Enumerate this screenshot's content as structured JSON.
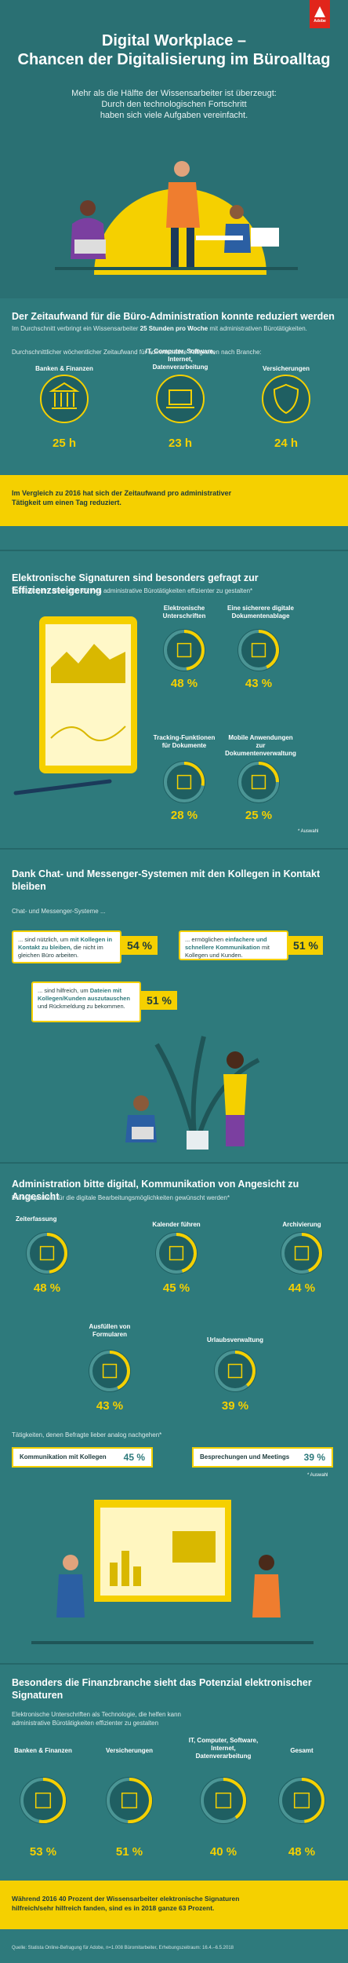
{
  "header": {
    "logo": "Adobe",
    "title_lines": [
      "Digital Workplace –",
      "Chancen der Digitalisierung im Büroalltag"
    ],
    "intro_lines": [
      "Mehr als die Hälfte der Wissensarbeiter ist überzeugt:",
      "Durch den technologischen Fortschritt",
      "haben sich viele Aufgaben vereinfacht."
    ]
  },
  "section1": {
    "title": "Der Zeitaufwand für die Büro-Administration konnte reduziert werden",
    "intro": [
      "Im Durchschnitt verbringt ein Wissensarbeiter ",
      "25 Stunden pro Woche",
      " mit administrativen Bürotätigkeiten."
    ],
    "subtitle": "Durchschnittlicher wöchentlicher Zeitaufwand für administrative Tätigkeiten nach Branche:",
    "items": [
      {
        "label": "Banken & Finanzen",
        "value": "25 h"
      },
      {
        "label": "IT, Computer, Software, Internet, Datenverarbeitung",
        "value": "23 h"
      },
      {
        "label": "Versicherungen",
        "value": "24 h"
      }
    ],
    "highlight": "Im Vergleich zu 2016 hat sich der Zeitaufwand pro administrativer Tätigkeit um einen Tag reduziert."
  },
  "section2": {
    "title": "Elektronische Signaturen sind besonders gefragt zur Effizienzsteigerung",
    "subtitle": "Technologien, die helfen können administrative Bürotätigkeiten effizienter zu gestalten*",
    "items": [
      {
        "label": "Elektronische Unterschriften",
        "value": 48,
        "value_label": "48 %"
      },
      {
        "label": "Eine sicherere digitale Dokumentenablage",
        "value": 43,
        "value_label": "43 %"
      },
      {
        "label": "Tracking-Funktionen für Dokumente",
        "value": 28,
        "value_label": "28 %"
      },
      {
        "label": "Mobile Anwendungen zur Dokumentenverwaltung",
        "value": 25,
        "value_label": "25 %"
      }
    ],
    "note": "* Auswahl"
  },
  "section3": {
    "title": "Dank Chat- und Messenger-Systemen mit den Kollegen in Kontakt bleiben",
    "subtitle": "Chat- und Messenger-Systeme ...",
    "bubbles": [
      {
        "parts": [
          "... sind nützlich, um ",
          "mit Kollegen in Kontakt zu bleiben,",
          " die nicht im gleichen Büro arbeiten."
        ],
        "value": "54 %"
      },
      {
        "parts": [
          "... ermöglichen ",
          "einfachere und schnellere Kommunikation",
          " mit Kollegen und Kunden."
        ],
        "value": "51 %"
      },
      {
        "parts": [
          "... sind hilfreich, um ",
          "Dateien mit Kollegen/Kunden auszutauschen",
          " und Rückmeldung zu bekommen."
        ],
        "value": "51 %"
      }
    ]
  },
  "section4": {
    "title": "Administration bitte digital, Kommunikation von Angesicht zu Angesicht",
    "subtitle": "Bürotätigkeiten, für die digitale Bearbeitungsmöglichkeiten gewünscht werden*",
    "items": [
      {
        "label": "Zeiterfassung",
        "value": 48,
        "value_label": "48 %"
      },
      {
        "label": "Kalender führen",
        "value": 45,
        "value_label": "45 %"
      },
      {
        "label": "Archivierung",
        "value": 44,
        "value_label": "44 %"
      },
      {
        "label": "Ausfüllen von Formularen",
        "value": 43,
        "value_label": "43 %"
      },
      {
        "label": "Urlaubsverwaltung",
        "value": 39,
        "value_label": "39 %"
      }
    ],
    "analog_subtitle": "Tätigkeiten, denen Befragte lieber analog nachgehen*",
    "analog": [
      {
        "label": "Kommunikation mit Kollegen",
        "value": "45 %"
      },
      {
        "label": "Besprechungen und Meetings",
        "value": "39 %"
      }
    ],
    "note": "* Auswahl"
  },
  "section5": {
    "title": "Besonders die Finanzbranche sieht das Potenzial elektronischer Signaturen",
    "subtitle": "Elektronische Unterschriften als Technologie, die helfen kann administrative Bürotätigkeiten effizienter zu gestalten",
    "items": [
      {
        "label": "Banken & Finanzen",
        "value": 53,
        "value_label": "53 %"
      },
      {
        "label": "Versicherungen",
        "value": 51,
        "value_label": "51 %"
      },
      {
        "label": "IT, Computer, Software, Internet, Datenverarbeitung",
        "value": 40,
        "value_label": "40 %"
      },
      {
        "label": "Gesamt",
        "value": 48,
        "value_label": "48 %"
      }
    ],
    "highlight": "Während 2016 40 Prozent der Wissensarbeiter elektronische Signaturen hilfreich/sehr hilfreich fanden, sind es in 2018 ganze 63 Prozent."
  },
  "footer": {
    "source": "Quelle: Statista Online-Befragung für Adobe, n=1.008 Büromitarbeiter, Erhebungszeitraum: 16.4.–6.5.2018"
  }
}
